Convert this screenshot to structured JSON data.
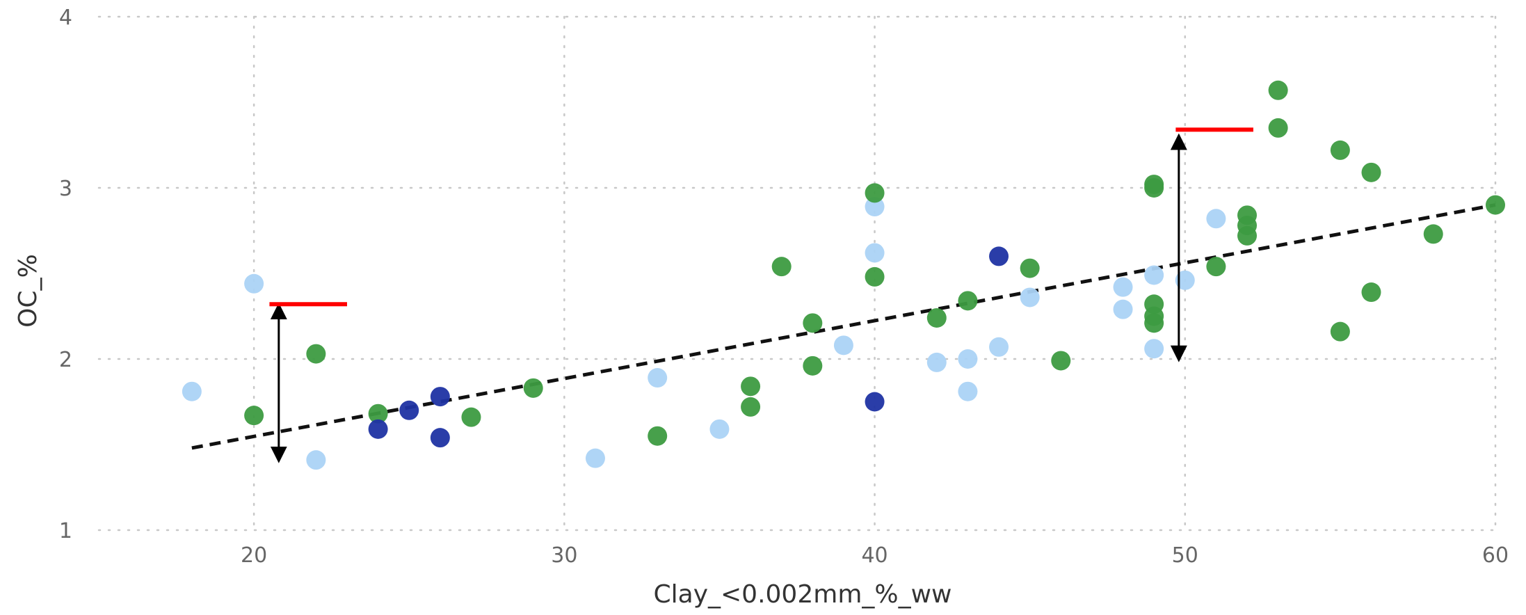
{
  "chart_data": {
    "type": "scatter",
    "title": "",
    "xlabel": "Clay_<0.002mm_%_ww",
    "ylabel": "OC_%",
    "xlim": [
      15,
      60
    ],
    "ylim": [
      1,
      4
    ],
    "x_ticks": [
      "20",
      "30",
      "40",
      "50",
      "60"
    ],
    "y_ticks": [
      "1",
      "2",
      "3",
      "4"
    ],
    "grid": "dotted",
    "legend": "none",
    "series": [
      {
        "color": "#abd3f6",
        "points": [
          [
            18,
            1.81
          ],
          [
            20,
            2.44
          ],
          [
            22,
            1.41
          ],
          [
            31,
            1.42
          ],
          [
            33,
            1.89
          ],
          [
            35,
            1.59
          ],
          [
            39,
            2.08
          ],
          [
            40,
            2.89
          ],
          [
            40,
            2.62
          ],
          [
            42,
            1.98
          ],
          [
            43,
            2.0
          ],
          [
            43,
            1.81
          ],
          [
            44,
            2.07
          ],
          [
            45,
            2.36
          ],
          [
            48,
            2.42
          ],
          [
            48,
            2.29
          ],
          [
            49,
            2.49
          ],
          [
            49,
            2.06
          ],
          [
            50,
            2.46
          ],
          [
            51,
            2.82
          ]
        ]
      },
      {
        "color": "#3d9b41",
        "points": [
          [
            20,
            1.67
          ],
          [
            22,
            2.03
          ],
          [
            24,
            1.68
          ],
          [
            27,
            1.66
          ],
          [
            29,
            1.83
          ],
          [
            33,
            1.55
          ],
          [
            36,
            1.84
          ],
          [
            36,
            1.72
          ],
          [
            37,
            2.54
          ],
          [
            38,
            2.21
          ],
          [
            38,
            1.96
          ],
          [
            40,
            2.97
          ],
          [
            40,
            2.48
          ],
          [
            42,
            2.24
          ],
          [
            43,
            2.34
          ],
          [
            45,
            2.53
          ],
          [
            46,
            1.99
          ],
          [
            49,
            3.02
          ],
          [
            49,
            3.0
          ],
          [
            49,
            2.32
          ],
          [
            49,
            2.25
          ],
          [
            49,
            2.21
          ],
          [
            51,
            2.54
          ],
          [
            52,
            2.84
          ],
          [
            52,
            2.78
          ],
          [
            52,
            2.72
          ],
          [
            53,
            3.57
          ],
          [
            53,
            3.35
          ],
          [
            55,
            3.22
          ],
          [
            55,
            2.16
          ],
          [
            56,
            3.09
          ],
          [
            56,
            2.39
          ],
          [
            58,
            2.73
          ],
          [
            60,
            2.9
          ]
        ]
      },
      {
        "color": "#1f33a3",
        "points": [
          [
            24,
            1.59
          ],
          [
            25,
            1.7
          ],
          [
            26,
            1.78
          ],
          [
            26,
            1.54
          ],
          [
            40,
            1.75
          ],
          [
            44,
            2.6
          ]
        ]
      }
    ],
    "trendline": {
      "style": "dashed",
      "color": "#111111",
      "from": [
        18,
        1.48
      ],
      "to": [
        60,
        2.9
      ]
    },
    "annotations": [
      {
        "type": "double-arrow",
        "x": 20.8,
        "y1": 1.44,
        "y2": 2.28,
        "color": "#000000"
      },
      {
        "type": "hline",
        "x1": 20.5,
        "x2": 23.0,
        "y": 2.32,
        "color": "#ff0000"
      },
      {
        "type": "double-arrow",
        "x": 49.8,
        "y1": 2.03,
        "y2": 3.27,
        "color": "#000000"
      },
      {
        "type": "hline",
        "x1": 49.7,
        "x2": 52.2,
        "y": 3.34,
        "color": "#ff0000"
      }
    ]
  }
}
